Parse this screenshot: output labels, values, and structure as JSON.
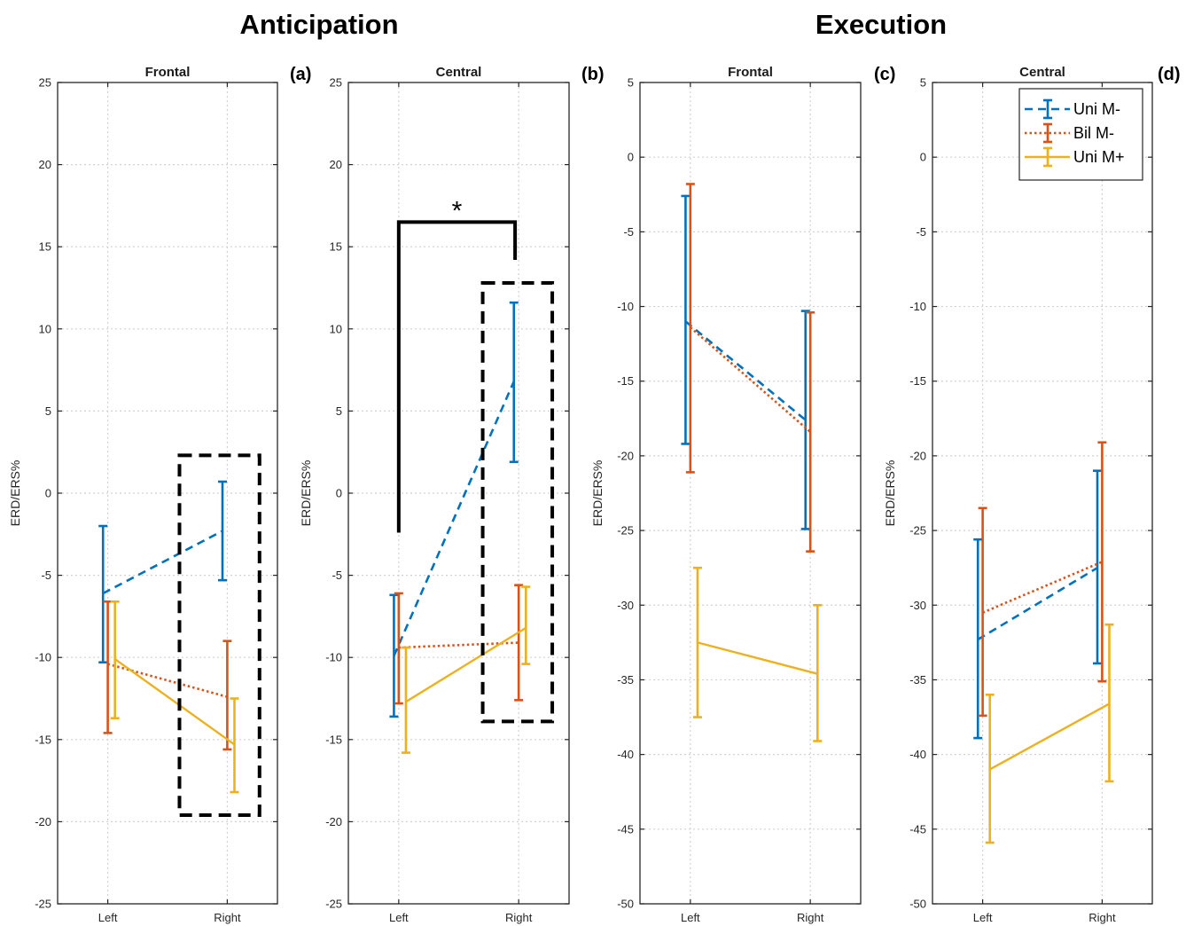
{
  "figure": {
    "section_titles": [
      "Anticipation",
      "Execution"
    ]
  },
  "colors": {
    "uni_m_minus": "#0072BD",
    "bil_m_minus": "#D95319",
    "uni_m_plus": "#EDB120"
  },
  "legend": {
    "items": [
      "Uni M-",
      "Bil M-",
      "Uni M+"
    ],
    "placement": "top-right of panel (d)"
  },
  "chart_data": [
    {
      "type": "line",
      "panel_label": "(a)",
      "title": "Frontal",
      "ylabel": "ERD/ERS%",
      "categories": [
        "Left",
        "Right"
      ],
      "ylim": [
        -25,
        25
      ],
      "yticks": [
        25,
        20,
        15,
        10,
        5,
        0,
        -5,
        -10,
        -15,
        -20,
        -25
      ],
      "grid": true,
      "series": [
        {
          "name": "Uni M-",
          "values": [
            -6.1,
            -2.3
          ],
          "err_low": [
            -10.3,
            -5.3
          ],
          "err_high": [
            -2.0,
            0.7
          ]
        },
        {
          "name": "Bil M-",
          "values": [
            -10.4,
            -12.4
          ],
          "err_low": [
            -14.6,
            -15.6
          ],
          "err_high": [
            -6.6,
            -9.0
          ]
        },
        {
          "name": "Uni M+",
          "values": [
            -10.1,
            -15.3
          ],
          "err_low": [
            -13.7,
            -18.2
          ],
          "err_high": [
            -6.6,
            -12.5
          ]
        }
      ],
      "annotations": {
        "dashed_box": {
          "x_from": 1.6,
          "x_to": 2.27,
          "y_from": -19.6,
          "y_to": 2.3
        }
      }
    },
    {
      "type": "line",
      "panel_label": "(b)",
      "title": "Central",
      "ylabel": "ERD/ERS%",
      "categories": [
        "Left",
        "Right"
      ],
      "ylim": [
        -25,
        25
      ],
      "yticks": [
        25,
        20,
        15,
        10,
        5,
        0,
        -5,
        -10,
        -15,
        -20,
        -25
      ],
      "grid": true,
      "series": [
        {
          "name": "Uni M-",
          "values": [
            -9.9,
            6.8
          ],
          "err_low": [
            -13.6,
            1.9
          ],
          "err_high": [
            -6.2,
            11.6
          ]
        },
        {
          "name": "Bil M-",
          "values": [
            -9.4,
            -9.1
          ],
          "err_low": [
            -12.8,
            -12.6
          ],
          "err_high": [
            -6.1,
            -5.6
          ]
        },
        {
          "name": "Uni M+",
          "values": [
            -12.7,
            -8.2
          ],
          "err_low": [
            -15.8,
            -10.4
          ],
          "err_high": [
            -9.4,
            -5.7
          ]
        }
      ],
      "annotations": {
        "dashed_box": {
          "x_from": 1.7,
          "x_to": 2.28,
          "y_from": -13.9,
          "y_to": 12.8
        },
        "significance": {
          "text": "*",
          "x_from": 1.0,
          "x_to": 1.97,
          "y_top": 16.5,
          "left_drop_to": -2.4,
          "right_drop_to": 14.2
        }
      }
    },
    {
      "type": "line",
      "panel_label": "(c)",
      "title": "Frontal",
      "ylabel": "ERD/ERS%",
      "categories": [
        "Left",
        "Right"
      ],
      "ylim": [
        -50,
        5
      ],
      "yticks": [
        5,
        0,
        -5,
        -10,
        -15,
        -20,
        -25,
        -30,
        -35,
        -40,
        -45,
        -50
      ],
      "grid": true,
      "series": [
        {
          "name": "Uni M-",
          "values": [
            -11.0,
            -17.6
          ],
          "err_low": [
            -19.2,
            -24.9
          ],
          "err_high": [
            -2.6,
            -10.3
          ]
        },
        {
          "name": "Bil M-",
          "values": [
            -11.4,
            -18.4
          ],
          "err_low": [
            -21.1,
            -26.4
          ],
          "err_high": [
            -1.8,
            -10.4
          ]
        },
        {
          "name": "Uni M+",
          "values": [
            -32.5,
            -34.6
          ],
          "err_low": [
            -37.5,
            -39.1
          ],
          "err_high": [
            -27.5,
            -30.0
          ]
        }
      ]
    },
    {
      "type": "line",
      "panel_label": "(d)",
      "title": "Central",
      "ylabel": "ERD/ERS%",
      "categories": [
        "Left",
        "Right"
      ],
      "ylim": [
        -50,
        5
      ],
      "yticks": [
        5,
        0,
        -5,
        -10,
        -15,
        -20,
        -25,
        -30,
        -35,
        -40,
        -45,
        -50
      ],
      "grid": true,
      "series": [
        {
          "name": "Uni M-",
          "values": [
            -32.3,
            -27.5
          ],
          "err_low": [
            -38.9,
            -33.9
          ],
          "err_high": [
            -25.6,
            -21.0
          ]
        },
        {
          "name": "Bil M-",
          "values": [
            -30.5,
            -27.1
          ],
          "err_low": [
            -37.4,
            -35.1
          ],
          "err_high": [
            -23.5,
            -19.1
          ]
        },
        {
          "name": "Uni M+",
          "values": [
            -41.0,
            -36.6
          ],
          "err_low": [
            -45.9,
            -41.8
          ],
          "err_high": [
            -36.0,
            -31.3
          ]
        }
      ]
    }
  ]
}
